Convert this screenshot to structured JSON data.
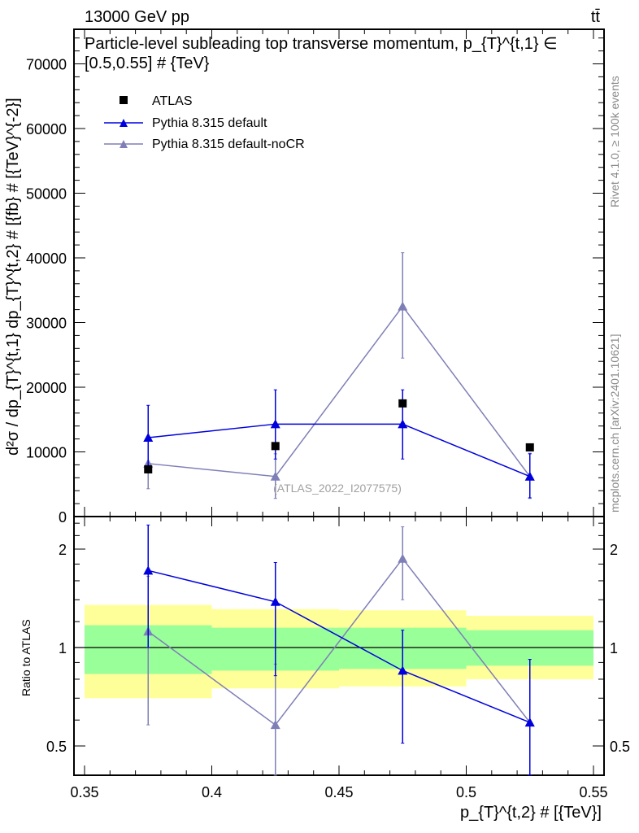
{
  "header": {
    "energy_label": "13000 GeV pp",
    "process_label": "tt̄",
    "title": "Particle-level subleading top transverse momentum, p_{T}^{t,1} ∈ [0.5,0.55] # {TeV}",
    "side_label_top": "Rivet 4.1.0, ≥ 100k events",
    "side_label_bottom": "mcplots.cern.ch [arXiv:2401.10621]",
    "watermark": "(ATLAS_2022_I2077575)"
  },
  "colors": {
    "atlas": "#000000",
    "default": "#0000dd",
    "nocr": "#7f7fb8",
    "band_inner": "#99ff99",
    "band_outer": "#ffff99"
  },
  "chart_data": [
    {
      "type": "scatter",
      "name": "main",
      "ylabel": "d²σ / dp_{T}^{t,1} dp_{T}^{t,2} # [{fb} # [{TeV}^{-2}]",
      "xlim": [
        0.35,
        0.55
      ],
      "ylim": [
        0,
        70000
      ],
      "yticks": [
        0,
        10000,
        20000,
        30000,
        40000,
        50000,
        60000,
        70000
      ],
      "ytick_labels": [
        "0",
        "10000",
        "20000",
        "30000",
        "40000",
        "50000",
        "60000",
        "70000"
      ],
      "legend_position": "top-left",
      "x": [
        0.375,
        0.425,
        0.475,
        0.525
      ],
      "series": [
        {
          "name": "ATLAS",
          "marker": "square",
          "values": [
            7300,
            10900,
            17500,
            10700
          ]
        },
        {
          "name": "Pythia 8.315 default",
          "marker": "triangle",
          "values": [
            12200,
            14300,
            14300,
            6200
          ],
          "err_low": [
            7300,
            8900,
            8900,
            2900
          ],
          "err_high": [
            17200,
            19600,
            19600,
            9700
          ]
        },
        {
          "name": "Pythia 8.315 default-noCR",
          "marker": "triangle",
          "values": [
            8200,
            6200,
            32500,
            6200
          ],
          "err_low": [
            4300,
            2800,
            24500,
            2800
          ],
          "err_high": [
            12000,
            9700,
            40800,
            9800
          ]
        }
      ]
    },
    {
      "type": "line",
      "name": "ratio",
      "ylabel": "Ratio to ATLAS",
      "xlabel": "p_{T}^{t,2} # [{TeV}]",
      "yscale": "log",
      "ylim": [
        0.41,
        2.52
      ],
      "yticks": [
        0.5,
        1,
        2
      ],
      "ytick_labels": [
        "0.5",
        "1",
        "2"
      ],
      "xticks": [
        0.35,
        0.4,
        0.45,
        0.5,
        0.55
      ],
      "xtick_labels": [
        "0.35",
        "0.4",
        "0.45",
        "0.5",
        "0.55"
      ],
      "x": [
        0.375,
        0.425,
        0.475,
        0.525
      ],
      "bins": [
        [
          0.35,
          0.4
        ],
        [
          0.4,
          0.45
        ],
        [
          0.45,
          0.5
        ],
        [
          0.5,
          0.55
        ]
      ],
      "band_outer": {
        "low": [
          0.7,
          0.75,
          0.76,
          0.8
        ],
        "high": [
          1.35,
          1.31,
          1.3,
          1.25
        ]
      },
      "band_inner": {
        "low": [
          0.83,
          0.85,
          0.86,
          0.88
        ],
        "high": [
          1.17,
          1.15,
          1.15,
          1.13
        ]
      },
      "series": [
        {
          "name": "Pythia 8.315 default",
          "values": [
            1.72,
            1.38,
            0.85,
            0.59
          ],
          "err_low": [
            1.0,
            0.82,
            0.51,
            0.27
          ],
          "err_high": [
            2.37,
            1.82,
            1.13,
            0.92
          ]
        },
        {
          "name": "Pythia 8.315 default-noCR",
          "values": [
            1.12,
            0.58,
            1.87,
            0.59
          ],
          "err_low": [
            0.58,
            0.26,
            1.4,
            0.26
          ],
          "err_high": [
            1.65,
            0.89,
            2.34,
            0.92
          ]
        }
      ]
    }
  ]
}
